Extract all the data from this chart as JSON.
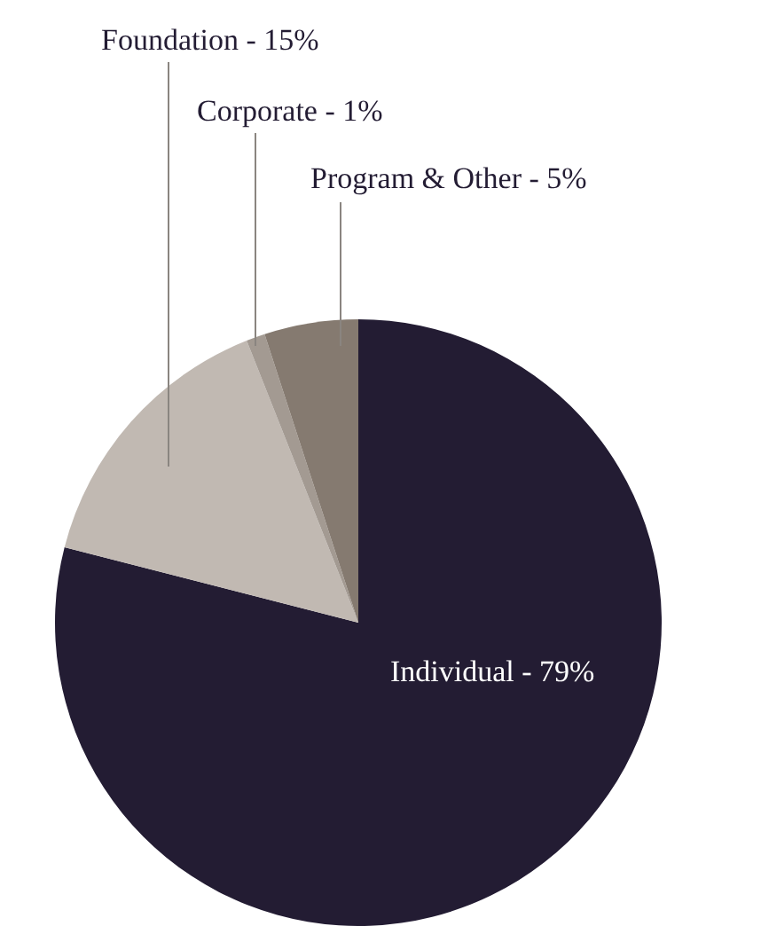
{
  "chart_data": {
    "type": "pie",
    "categories": [
      "Individual",
      "Foundation",
      "Corporate",
      "Program & Other"
    ],
    "values": [
      79,
      15,
      1,
      5
    ],
    "colors": [
      "#231c33",
      "#c1b9b2",
      "#a39a92",
      "#857a70"
    ],
    "value_labels": [
      "79%",
      "15%",
      "1%",
      "5%"
    ]
  }
}
